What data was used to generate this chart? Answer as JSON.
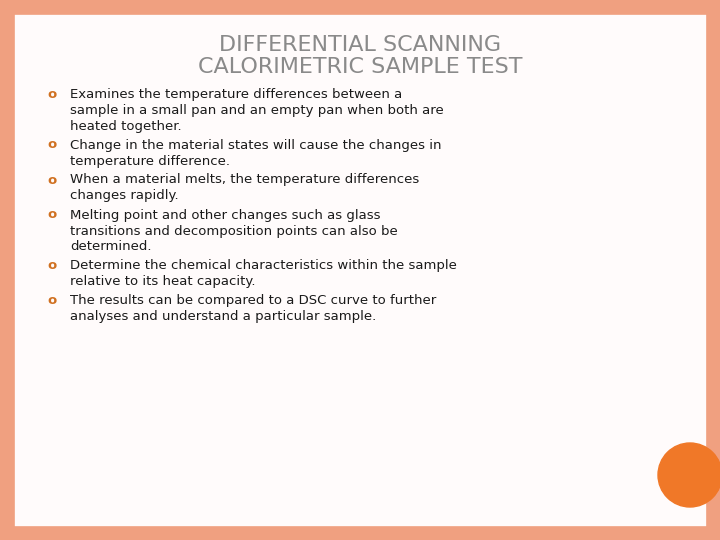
{
  "title_line1": "DIFFERENTIAL SCANNING",
  "title_line2": "CALORIMETRIC SAMPLE TEST",
  "title_color": "#8a8a8a",
  "title_fontsize": 16,
  "background_color": "#fffbfb",
  "border_color": "#f0a080",
  "bullet_color": "#d07020",
  "text_color": "#1a1a1a",
  "bullet_char": "o",
  "body_fontsize": 9.5,
  "bullets": [
    "Examines the temperature differences between a\nsample in a small pan and an empty pan when both are\nheated together.",
    "Change in the material states will cause the changes in\ntemperature difference.",
    "When a material melts, the temperature differences\nchanges rapidly.",
    "Melting point and other changes such as glass\ntransitions and decomposition points can also be\ndetermined.",
    "Determine the chemical characteristics within the sample\nrelative to its heat capacity.",
    "The results can be compared to a DSC curve to further\nanalyses and understand a particular sample."
  ],
  "line_heights": [
    3,
    2,
    2,
    3,
    2,
    2
  ],
  "orange_circle_color": "#f07828"
}
